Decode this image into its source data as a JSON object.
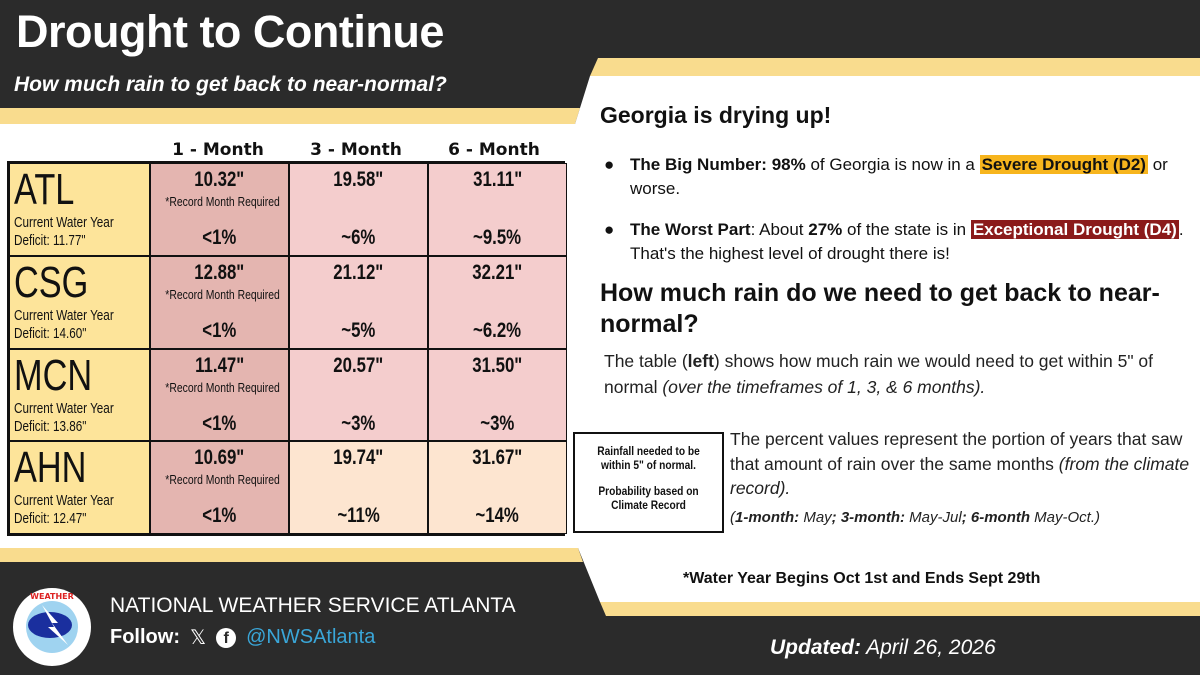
{
  "header": {
    "title": "Drought to Continue",
    "subtitle": "How much rain to get back to near-normal?"
  },
  "table": {
    "columns": [
      "1 - Month",
      "3 - Month",
      "6 - Month"
    ],
    "deficit_label": "Current Water Year",
    "record_note": "*Record Month Required",
    "rows": [
      {
        "station": "ATL",
        "deficit": "Deficit: 11.77\"",
        "m1": "10.32\"",
        "m1_pct": "<1%",
        "m3": "19.58\"",
        "m3_pct": "~6%",
        "m6": "31.11\"",
        "m6_pct": "~9.5%"
      },
      {
        "station": "CSG",
        "deficit": "Deficit: 14.60\"",
        "m1": "12.88\"",
        "m1_pct": "<1%",
        "m3": "21.12\"",
        "m3_pct": "~5%",
        "m6": "32.21\"",
        "m6_pct": "~6.2%"
      },
      {
        "station": "MCN",
        "deficit": "Deficit: 13.86\"",
        "m1": "11.47\"",
        "m1_pct": "<1%",
        "m3": "20.57\"",
        "m3_pct": "~3%",
        "m6": "31.50\"",
        "m6_pct": "~3%"
      },
      {
        "station": "AHN",
        "deficit": "Deficit: 12.47\"",
        "m1": "10.69\"",
        "m1_pct": "<1%",
        "m3": "19.74\"",
        "m3_pct": "~11%",
        "m6": "31.67\"",
        "m6_pct": "~14%"
      }
    ]
  },
  "legend_box": {
    "line1": "Rainfall needed to be",
    "line2": "within 5\" of normal.",
    "line3": "Probability based on",
    "line4": "Climate Record"
  },
  "right": {
    "heading": "Georgia is drying up!",
    "bullet1": {
      "lead": "The Big Number:",
      "pct": "98%",
      "mid": " of Georgia is now in a ",
      "highlight": "Severe Drought (D2)",
      "tail": " or worse."
    },
    "bullet2": {
      "lead": "The Worst Part",
      "mid": ": About ",
      "pct": "27%",
      "mid2": " of the state is in ",
      "highlight": "Exceptional Drought (D4)",
      "tail": ". That's the highest level of drought there is!"
    },
    "heading2": "How much rain do we need to get back to near-normal?",
    "para1": {
      "a": "The table (",
      "b": "left",
      "c": ") shows how much rain we would need to get within 5\" of normal ",
      "d": "(over the timeframes of 1, 3, & 6 months)."
    },
    "para2": {
      "a": "The percent values represent the portion of years that saw that amount of rain over the same months ",
      "b": "(from the climate record)."
    },
    "para3": {
      "a": "(",
      "b": "1-month:",
      "c": " May",
      "d": "; 3-month:",
      "e": " May-Jul",
      "f": "; 6-month",
      "g": " May-Oct.)"
    },
    "water_year": "*Water Year Begins Oct 1st and Ends Sept 29th"
  },
  "footer": {
    "org": "NATIONAL WEATHER SERVICE ATLANTA",
    "follow": "Follow:",
    "handle": "@NWSAtlanta",
    "updated_label": "Updated:",
    "updated_date": "April 26, 2026",
    "logo_text": "NATIONAL WEATHER SERVICE"
  },
  "colors": {
    "dark": "#2b2b2b",
    "yellow": "#f9dc8e",
    "station": "#fde49a",
    "month1": "#e4b5b0",
    "month": "#f4cdcd",
    "light": "#fde5d0",
    "severe": "#f7b51d",
    "exceptional": "#8b1a1a",
    "handle": "#3aa6d8"
  }
}
